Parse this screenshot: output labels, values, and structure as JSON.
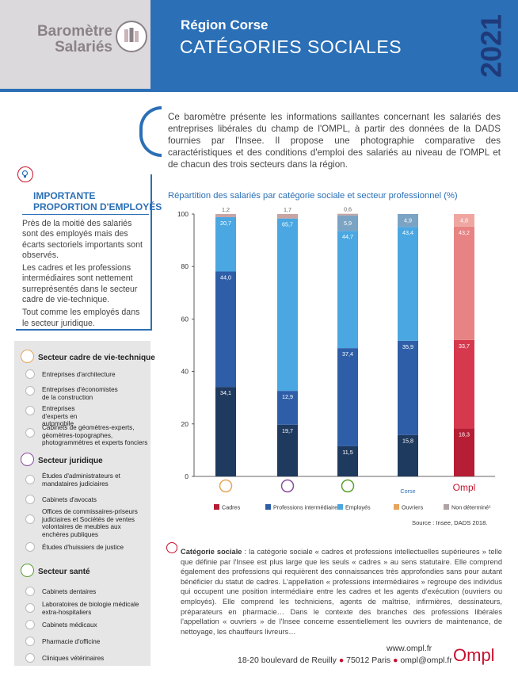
{
  "header": {
    "logo_line1": "Baromètre",
    "logo_line2": "Salariés",
    "region": "Région Corse",
    "title": "CATÉGORIES SOCIALES",
    "year": "2021"
  },
  "intro": "Ce baromètre présente les informations saillantes concernant les salariés des entreprises libérales du champ de l'OMPL, à partir des données de la DADS fournies par l'Insee. Il propose une photographie comparative des caractéristiques et des conditions d'emploi des salariés au niveau de l'OMPL et de chacun des trois secteurs dans la région.",
  "important": {
    "title_line1": "IMPORTANTE",
    "title_line2": "PROPORTION D'EMPLOYÉS",
    "p1": "Près de la moitié des salariés sont des employés mais des écarts sectoriels importants sont observés.",
    "p2": "Les cadres et les professions intermédiaires sont nettement surreprésentés dans le secteur cadre de vie-technique.",
    "p3": "Tout comme les employés dans le secteur juridique."
  },
  "sidebar": {
    "sections": [
      {
        "title": "Secteur cadre de vie-technique",
        "items": [
          "Entreprises d'architecture",
          "Entreprises d'économistes de la construction",
          "Entreprises d'experts en automobile",
          "Cabinets de géomètres-experts, géomètres-topographes, photogrammètres et experts fonciers"
        ]
      },
      {
        "title": "Secteur juridique",
        "items": [
          "Études d'administrateurs et mandataires judiciaires",
          "Cabinets d'avocats",
          "Offices de commissaires-priseurs judiciaires et Sociétés de ventes volontaires de meubles aux enchères publiques",
          "Études d'huissiers de justice"
        ]
      },
      {
        "title": "Secteur santé",
        "items": [
          "Cabinets dentaires",
          "Laboratoires de biologie médicale extra-hospitaliers",
          "Cabinets médicaux",
          "Pharmacie d'officine",
          "Cliniques vétérinaires"
        ]
      }
    ]
  },
  "chart_data": {
    "type": "bar",
    "stacked": true,
    "title": "Répartition des salariés par catégorie sociale et secteur professionnel (%)",
    "categories": [
      "Cadre de vie-technique",
      "Juridique",
      "Santé",
      "Corse",
      "Ompl"
    ],
    "x_tick_text": [
      "",
      "",
      "",
      "Corse",
      ""
    ],
    "ylim": [
      0,
      100
    ],
    "yticks": [
      0,
      20,
      40,
      60,
      80,
      100
    ],
    "series": [
      {
        "name": "Cadres",
        "values": [
          34.1,
          19.7,
          11.5,
          15.8,
          18.3
        ]
      },
      {
        "name": "Professions intermédiaires",
        "values": [
          44.0,
          12.9,
          37.4,
          35.9,
          33.7
        ]
      },
      {
        "name": "Employés",
        "values": [
          20.7,
          65.7,
          44.7,
          43.4,
          43.2
        ]
      },
      {
        "name": "Ouvriers",
        "values": [
          null,
          null,
          5.9,
          4.9,
          4.8
        ]
      },
      {
        "name": "Non déterminé",
        "values": [
          1.2,
          1.7,
          0.6,
          null,
          null
        ]
      }
    ],
    "labels": {
      "Cadres": [
        "34,1",
        "19,7",
        "11,5",
        "15,8",
        "18,3"
      ],
      "Professions intermédiaires": [
        "44,0",
        "12,9",
        "37,4",
        "35,9",
        "33,7"
      ],
      "Employés": [
        "20,7",
        "65,7",
        "44,7",
        "43,4",
        "43,2"
      ],
      "Ouvriers": [
        "",
        "",
        "5,9",
        "4,9",
        "4,8"
      ],
      "Non déterminé": [
        "1,2",
        "1,7",
        "0,6",
        "",
        ""
      ]
    },
    "colors": {
      "Cadres": [
        "#1f3a5f",
        "#1f3a5f",
        "#1f3a5f",
        "#1f3a5f",
        "#b51e34"
      ],
      "Professions intermédiaires": [
        "#2e5ea8",
        "#2e5ea8",
        "#2e5ea8",
        "#2e5ea8",
        "#d6394d"
      ],
      "Employés": [
        "#4aa7e1",
        "#4aa7e1",
        "#4aa7e1",
        "#4aa7e1",
        "#e88383"
      ],
      "Ouvriers": [
        "#7ba3c4",
        "#7ba3c4",
        "#7ba3c4",
        "#7ba3c4",
        "#f0a6a0"
      ],
      "Non déterminé": [
        "#c9a4a4",
        "#c9a4a4",
        "#c9a4a4",
        "#c9a4a4",
        "#c9a4a4"
      ]
    },
    "legend": [
      "Cadres",
      "Professions intermédiaires",
      "Employés",
      "Ouvriers",
      "Non déterminé"
    ],
    "legend_colors": [
      "#b51e34",
      "#2e5ea8",
      "#4aa7e1",
      "#e6a55a",
      "#b0a3a3"
    ],
    "legend_display": [
      "Cadres",
      "Professions intermédiaires",
      "Employés",
      "Ouvriers",
      "Non déterminé¹"
    ],
    "source": "Source : Insee, DADS 2018.",
    "ompl_label": "Ompl"
  },
  "definition": {
    "term": "Catégorie sociale",
    "text": " : la catégorie sociale « cadres et professions intellectuelles supérieures » telle que définie par l'Insee est plus large que les seuls « cadres » au sens statutaire. Elle comprend également des professions qui requièrent des connaissances très approfondies sans pour autant bénéficier du statut de cadres. L'appellation « professions intermédiaires » regroupe des individus qui occupent une position intermédiaire entre les cadres et les agents d'exécution (ouvriers ou employés). Elle comprend les techniciens, agents de maîtrise, infirmières, dessinateurs, préparateurs en pharmacie… Dans le contexte des branches des professions libérales l'appellation « ouvriers » de l'Insee concerne essentiellement les ouvriers de maintenance, de nettoyage, les chauffeurs livreurs…"
  },
  "footer": {
    "website": "www.ompl.fr",
    "address": "18-20 boulevard de Reuilly",
    "city": "75012 Paris",
    "email": "ompl@ompl.fr",
    "logo": "Ompl"
  },
  "colors": {
    "brand_blue": "#2b6fb6",
    "brand_red": "#c8102e"
  }
}
